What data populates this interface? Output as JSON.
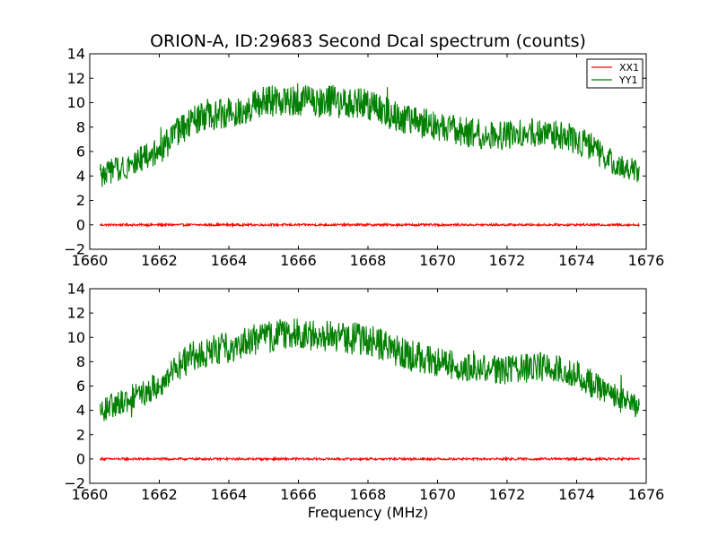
{
  "chart_data": {
    "type": "line",
    "title": "ORION-A, ID:29683 Second Dcal spectrum (counts)",
    "xlabel": "Frequency (MHz)",
    "ylabel": "",
    "xlim": [
      1660,
      1676
    ],
    "ylim": [
      -2,
      14
    ],
    "xticks": [
      "1660",
      "1662",
      "1664",
      "1666",
      "1668",
      "1670",
      "1672",
      "1674",
      "1676"
    ],
    "yticks": [
      "−2",
      "0",
      "2",
      "4",
      "6",
      "8",
      "10",
      "12",
      "14"
    ],
    "legend": {
      "placement": "top-right",
      "entries": [
        "XX1",
        "YY1"
      ]
    },
    "colors": {
      "XX1": "#ff0000",
      "YY1": "#007f00"
    },
    "x_range": [
      1660.3,
      1675.8
    ],
    "panels": [
      {
        "name": "top",
        "series": [
          {
            "name": "XX1",
            "x": [
              1660.3,
              1662,
              1664,
              1666,
              1668,
              1670,
              1672,
              1674,
              1675.8
            ],
            "values": [
              0,
              0,
              0,
              0,
              0,
              0,
              0,
              0,
              0
            ]
          },
          {
            "name": "YY1",
            "x": [
              1660.3,
              1661,
              1662,
              1662.5,
              1663,
              1664,
              1665,
              1666,
              1667,
              1668,
              1669,
              1670,
              1671,
              1672,
              1673,
              1674,
              1675,
              1675.8
            ],
            "values": [
              4.0,
              4.8,
              6.0,
              7.5,
              8.5,
              9.2,
              10.0,
              10.3,
              10.1,
              9.8,
              8.7,
              8.0,
              7.5,
              7.3,
              7.6,
              7.0,
              5.2,
              4.2
            ]
          }
        ]
      },
      {
        "name": "bottom",
        "series": [
          {
            "name": "XX1",
            "x": [
              1660.3,
              1662,
              1664,
              1666,
              1668,
              1670,
              1672,
              1674,
              1675.8
            ],
            "values": [
              0,
              0,
              0,
              0,
              0,
              0,
              0,
              0,
              0
            ]
          },
          {
            "name": "YY1",
            "x": [
              1660.3,
              1661,
              1662,
              1662.5,
              1663,
              1664,
              1665,
              1666,
              1667,
              1668,
              1669,
              1670,
              1671,
              1672,
              1673,
              1674,
              1675,
              1675.8
            ],
            "values": [
              4.0,
              4.8,
              6.0,
              7.5,
              8.5,
              9.2,
              10.0,
              10.3,
              10.1,
              9.8,
              8.7,
              8.0,
              7.5,
              7.3,
              7.6,
              7.0,
              5.2,
              4.2
            ]
          }
        ]
      }
    ]
  }
}
